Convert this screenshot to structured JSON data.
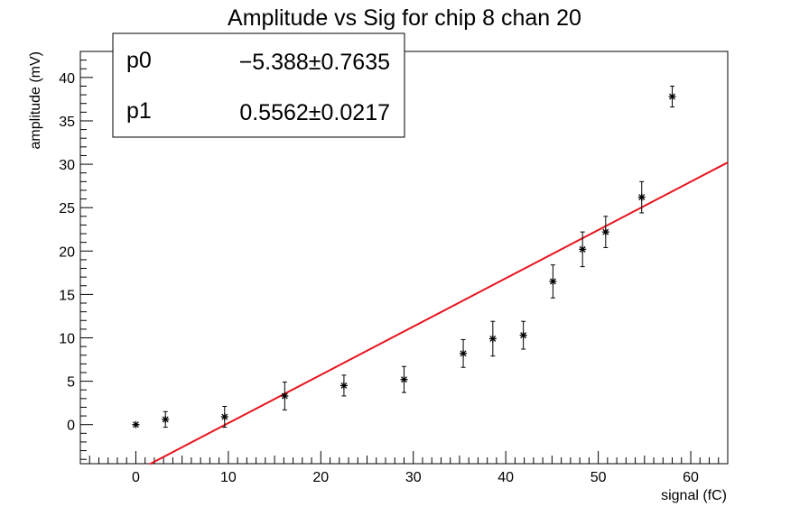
{
  "chart_data": {
    "type": "scatter",
    "title": "Amplitude vs Sig for chip 8 chan 20",
    "xlabel": "signal (fC)",
    "ylabel": "amplitude (mV)",
    "xlim": [
      -6,
      64
    ],
    "ylim": [
      -4.5,
      43
    ],
    "x_ticks": [
      0,
      10,
      20,
      30,
      40,
      50,
      60
    ],
    "y_ticks": [
      0,
      5,
      10,
      15,
      20,
      25,
      30,
      35,
      40
    ],
    "grid": false,
    "points": [
      {
        "x": 0.0,
        "y": 0.0,
        "err": 0.0
      },
      {
        "x": 3.2,
        "y": 0.6,
        "err": 0.9
      },
      {
        "x": 9.6,
        "y": 0.9,
        "err": 1.2
      },
      {
        "x": 16.1,
        "y": 3.3,
        "err": 1.6
      },
      {
        "x": 22.5,
        "y": 4.5,
        "err": 1.2
      },
      {
        "x": 29.0,
        "y": 5.2,
        "err": 1.5
      },
      {
        "x": 35.4,
        "y": 8.2,
        "err": 1.6
      },
      {
        "x": 38.6,
        "y": 9.9,
        "err": 2.0
      },
      {
        "x": 41.9,
        "y": 10.3,
        "err": 1.6
      },
      {
        "x": 45.1,
        "y": 16.5,
        "err": 1.9
      },
      {
        "x": 48.3,
        "y": 20.2,
        "err": 2.0
      },
      {
        "x": 50.8,
        "y": 22.2,
        "err": 1.8
      },
      {
        "x": 54.7,
        "y": 26.2,
        "err": 1.8
      },
      {
        "x": 58.0,
        "y": 37.8,
        "err": 1.2
      }
    ],
    "fit": {
      "p0_label": "p0",
      "p0_value": "−5.388",
      "p0_error": "0.7635",
      "p1_label": "p1",
      "p1_value": "0.5562",
      "p1_error": "0.0217",
      "p0": -5.388,
      "p1": 0.5562,
      "x_start": 1.5,
      "x_end": 64,
      "color": "#e8141e"
    },
    "pm_symbol": "±",
    "stats_box_position": "top-left"
  }
}
